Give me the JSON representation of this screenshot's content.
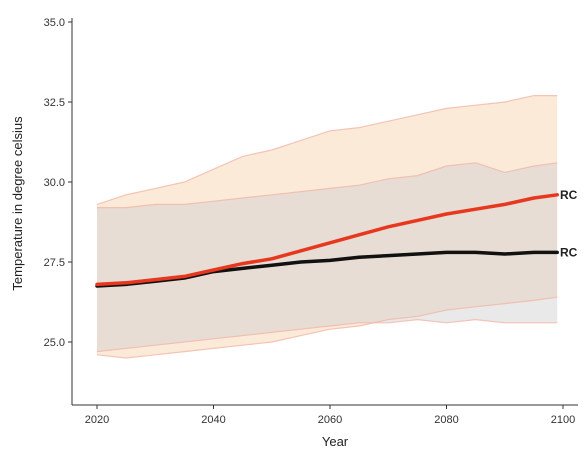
{
  "chart_data": {
    "type": "line",
    "title": "",
    "xlabel": "Year",
    "ylabel": "Temperature in degree celsius",
    "xlim": [
      2020,
      2100
    ],
    "ylim": [
      23,
      35
    ],
    "x_ticks": [
      "2020",
      "2040",
      "2060",
      "2080",
      "2100"
    ],
    "x_tick_values": [
      2020,
      2040,
      2060,
      2080,
      2100
    ],
    "y_ticks": [
      "25.0",
      "27.5",
      "30.0",
      "32.5",
      "35.0"
    ],
    "y_tick_values": [
      25.0,
      27.5,
      30.0,
      32.5,
      35.0
    ],
    "grid": false,
    "legend": "none",
    "colors": {
      "rc_high_line": "#e8371f",
      "rc_low_line": "#111111",
      "rc_high_band": "#fbe3cc",
      "rc_low_band": "#cfcfcf",
      "band_edge": "#f1b6a8",
      "axis": "#333333"
    },
    "x": [
      2020,
      2025,
      2030,
      2035,
      2040,
      2045,
      2050,
      2055,
      2060,
      2065,
      2070,
      2075,
      2080,
      2085,
      2090,
      2095,
      2099
    ],
    "series": [
      {
        "name": "RC",
        "values": [
          26.8,
          26.85,
          26.95,
          27.05,
          27.25,
          27.45,
          27.6,
          27.85,
          28.1,
          28.35,
          28.6,
          28.8,
          29.0,
          29.15,
          29.3,
          29.5,
          29.6
        ],
        "upper": [
          29.3,
          29.6,
          29.8,
          30.0,
          30.4,
          30.8,
          31.0,
          31.3,
          31.6,
          31.7,
          31.9,
          32.1,
          32.3,
          32.4,
          32.5,
          32.7,
          32.7
        ],
        "lower": [
          24.6,
          24.5,
          24.6,
          24.7,
          24.8,
          24.9,
          25.0,
          25.2,
          25.4,
          25.5,
          25.7,
          25.8,
          26.0,
          26.1,
          26.2,
          26.3,
          26.4
        ]
      },
      {
        "name": "RC",
        "values": [
          26.75,
          26.8,
          26.9,
          27.0,
          27.2,
          27.3,
          27.4,
          27.5,
          27.55,
          27.65,
          27.7,
          27.75,
          27.8,
          27.8,
          27.75,
          27.8,
          27.8
        ],
        "upper": [
          29.2,
          29.2,
          29.3,
          29.3,
          29.4,
          29.5,
          29.6,
          29.7,
          29.8,
          29.9,
          30.1,
          30.2,
          30.5,
          30.6,
          30.3,
          30.5,
          30.6
        ],
        "lower": [
          24.7,
          24.8,
          24.9,
          25.0,
          25.1,
          25.2,
          25.3,
          25.4,
          25.5,
          25.6,
          25.6,
          25.7,
          25.6,
          25.7,
          25.6,
          25.6,
          25.6
        ]
      }
    ]
  }
}
